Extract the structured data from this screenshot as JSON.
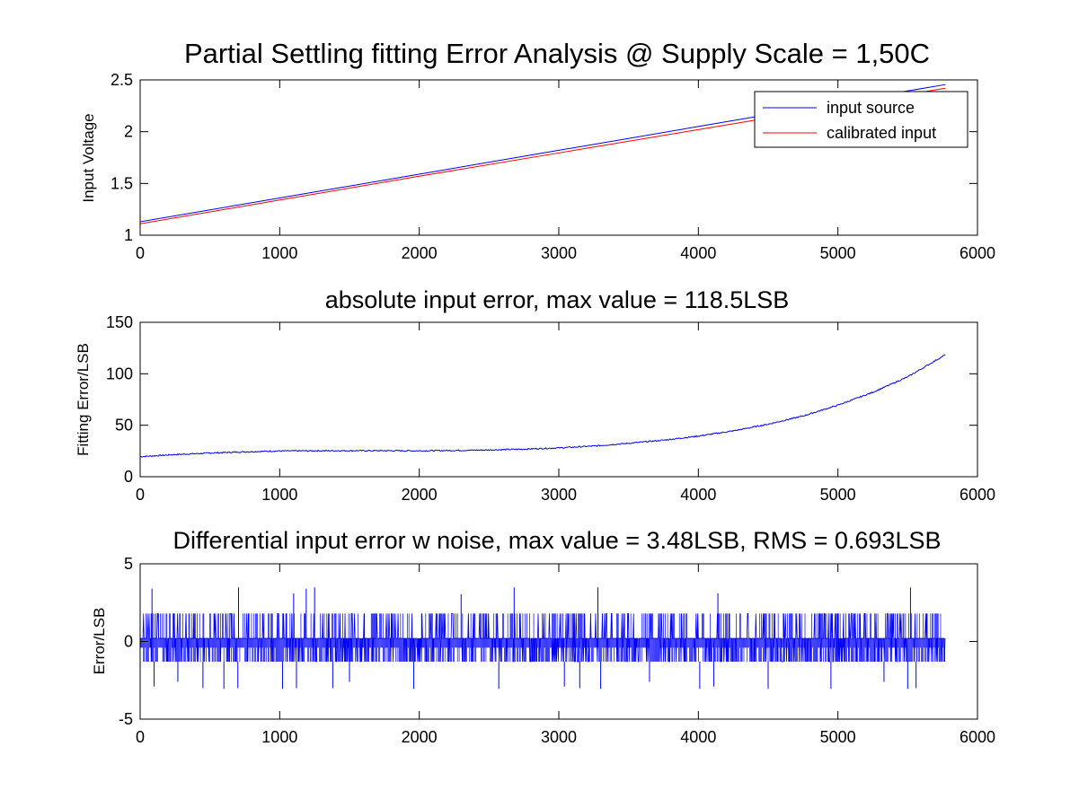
{
  "chart_data": [
    {
      "type": "line",
      "title": "Partial Settling fitting Error Analysis @ Supply Scale = 1,50C",
      "xlabel": "",
      "ylabel": "Input Voltage",
      "xlim": [
        0,
        6000
      ],
      "ylim": [
        1,
        2.5
      ],
      "xticks": [
        0,
        1000,
        2000,
        3000,
        4000,
        5000,
        6000
      ],
      "yticks": [
        1,
        1.5,
        2,
        2.5
      ],
      "grid": false,
      "legend": {
        "location": "top-right",
        "entries": [
          "input source",
          "calibrated input"
        ]
      },
      "series": [
        {
          "name": "input source",
          "color": "#0000ff",
          "x": [
            0,
            1000,
            2000,
            3000,
            4000,
            5000,
            5770
          ],
          "y": [
            1.13,
            1.36,
            1.59,
            1.82,
            2.05,
            2.28,
            2.455
          ]
        },
        {
          "name": "calibrated input",
          "color": "#ff0000",
          "x": [
            0,
            1000,
            2000,
            3000,
            4000,
            5000,
            5770
          ],
          "y": [
            1.11,
            1.34,
            1.57,
            1.795,
            2.02,
            2.245,
            2.42
          ]
        }
      ]
    },
    {
      "type": "line",
      "title": "absolute input error, max value = 118.5LSB",
      "xlabel": "",
      "ylabel": "Fitting Error/LSB",
      "xlim": [
        0,
        6000
      ],
      "ylim": [
        0,
        150
      ],
      "xticks": [
        0,
        1000,
        2000,
        3000,
        4000,
        5000,
        6000
      ],
      "yticks": [
        0,
        50,
        100,
        150
      ],
      "grid": false,
      "series": [
        {
          "color": "#0000ff",
          "x": [
            0,
            250,
            500,
            750,
            1000,
            1250,
            1500,
            1750,
            2000,
            2250,
            2500,
            2750,
            3000,
            3250,
            3500,
            3750,
            4000,
            4250,
            4500,
            4750,
            5000,
            5250,
            5500,
            5770
          ],
          "y": [
            19.5,
            21.5,
            23,
            24.2,
            25,
            25.2,
            25.3,
            25.3,
            25.2,
            25.5,
            26,
            26.8,
            28,
            29.8,
            32.5,
            35.5,
            39.5,
            44.5,
            51,
            59,
            69.5,
            82,
            97,
            118.5
          ]
        }
      ]
    },
    {
      "type": "line",
      "title": "Differential input error w noise, max value = 3.48LSB, RMS = 0.693LSB",
      "xlabel": "",
      "ylabel": "Error/LSB",
      "xlim": [
        0,
        6000
      ],
      "ylim": [
        -5,
        5
      ],
      "xticks": [
        0,
        1000,
        2000,
        3000,
        4000,
        5000,
        6000
      ],
      "yticks": [
        -5,
        0,
        5
      ],
      "grid": false,
      "series": [
        {
          "color": "#0000ff",
          "n_points": 5770,
          "levels": [
            -3.05,
            -1.3,
            0.2,
            1.8,
            3.48
          ],
          "spikes_up": [
            [
              85,
              3.4
            ],
            [
              705,
              3.48
            ],
            [
              1100,
              3.1
            ],
            [
              1190,
              3.4
            ],
            [
              1250,
              3.48
            ],
            [
              2300,
              3.05
            ],
            [
              2680,
              3.48
            ],
            [
              3280,
              3.48
            ],
            [
              4140,
              3.1
            ],
            [
              5520,
              3.48
            ]
          ],
          "spikes_down": [
            [
              100,
              -2.9
            ],
            [
              270,
              -2.6
            ],
            [
              450,
              -3.0
            ],
            [
              600,
              -3.05
            ],
            [
              700,
              -3.0
            ],
            [
              1020,
              -3.05
            ],
            [
              1120,
              -3.0
            ],
            [
              1380,
              -3.0
            ],
            [
              1500,
              -2.6
            ],
            [
              1960,
              -3.05
            ],
            [
              2570,
              -3.05
            ],
            [
              3040,
              -2.9
            ],
            [
              3150,
              -3.0
            ],
            [
              3300,
              -3.05
            ],
            [
              3650,
              -2.6
            ],
            [
              4010,
              -3.05
            ],
            [
              4110,
              -2.9
            ],
            [
              4500,
              -3.05
            ],
            [
              4950,
              -3.05
            ],
            [
              5330,
              -2.6
            ],
            [
              5500,
              -3.05
            ],
            [
              5560,
              -3.0
            ]
          ],
          "rms": 0.693,
          "max": 3.48
        }
      ]
    }
  ]
}
